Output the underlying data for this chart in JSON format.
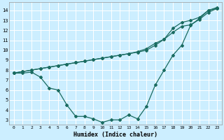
{
  "xlabel": "Humidex (Indice chaleur)",
  "bg_color": "#cceeff",
  "line_color": "#1a6b60",
  "grid_color": "#b8dde0",
  "xlim": [
    -0.5,
    23.5
  ],
  "ylim": [
    2.5,
    14.8
  ],
  "xticks": [
    0,
    1,
    2,
    3,
    4,
    5,
    6,
    7,
    8,
    9,
    10,
    11,
    12,
    13,
    14,
    15,
    16,
    17,
    18,
    19,
    20,
    21,
    22,
    23
  ],
  "yticks": [
    3,
    4,
    5,
    6,
    7,
    8,
    9,
    10,
    11,
    12,
    13,
    14
  ],
  "line1_x": [
    0,
    1,
    2,
    3,
    4,
    5,
    6,
    7,
    8,
    9,
    10,
    11,
    12,
    13,
    14,
    15,
    16,
    17,
    18,
    19,
    20,
    21,
    22,
    23
  ],
  "line1_y": [
    7.7,
    7.7,
    7.8,
    7.3,
    6.2,
    6.0,
    4.5,
    3.35,
    3.35,
    3.1,
    2.75,
    3.0,
    3.0,
    3.5,
    3.1,
    4.35,
    6.5,
    8.0,
    9.5,
    10.5,
    12.5,
    13.2,
    14.0,
    14.2
  ],
  "line2_x": [
    0,
    1,
    2,
    3,
    4,
    5,
    6,
    7,
    8,
    9,
    10,
    11,
    12,
    13,
    14,
    15,
    16,
    17,
    18,
    19,
    20,
    21,
    22,
    23
  ],
  "line2_y": [
    7.7,
    7.85,
    8.0,
    8.15,
    8.3,
    8.45,
    8.6,
    8.75,
    8.9,
    9.05,
    9.2,
    9.35,
    9.5,
    9.65,
    9.8,
    10.0,
    10.5,
    11.1,
    11.8,
    12.4,
    12.55,
    13.1,
    13.8,
    14.2
  ],
  "line3_x": [
    0,
    1,
    2,
    3,
    4,
    5,
    6,
    7,
    8,
    9,
    10,
    11,
    12,
    13,
    14,
    15,
    16,
    17,
    18,
    19,
    20,
    21,
    22,
    23
  ],
  "line3_y": [
    7.7,
    7.85,
    8.0,
    8.15,
    8.3,
    8.45,
    8.6,
    8.75,
    8.9,
    9.05,
    9.2,
    9.35,
    9.5,
    9.65,
    9.85,
    10.15,
    10.7,
    11.1,
    12.2,
    12.8,
    13.0,
    13.3,
    14.0,
    14.3
  ]
}
